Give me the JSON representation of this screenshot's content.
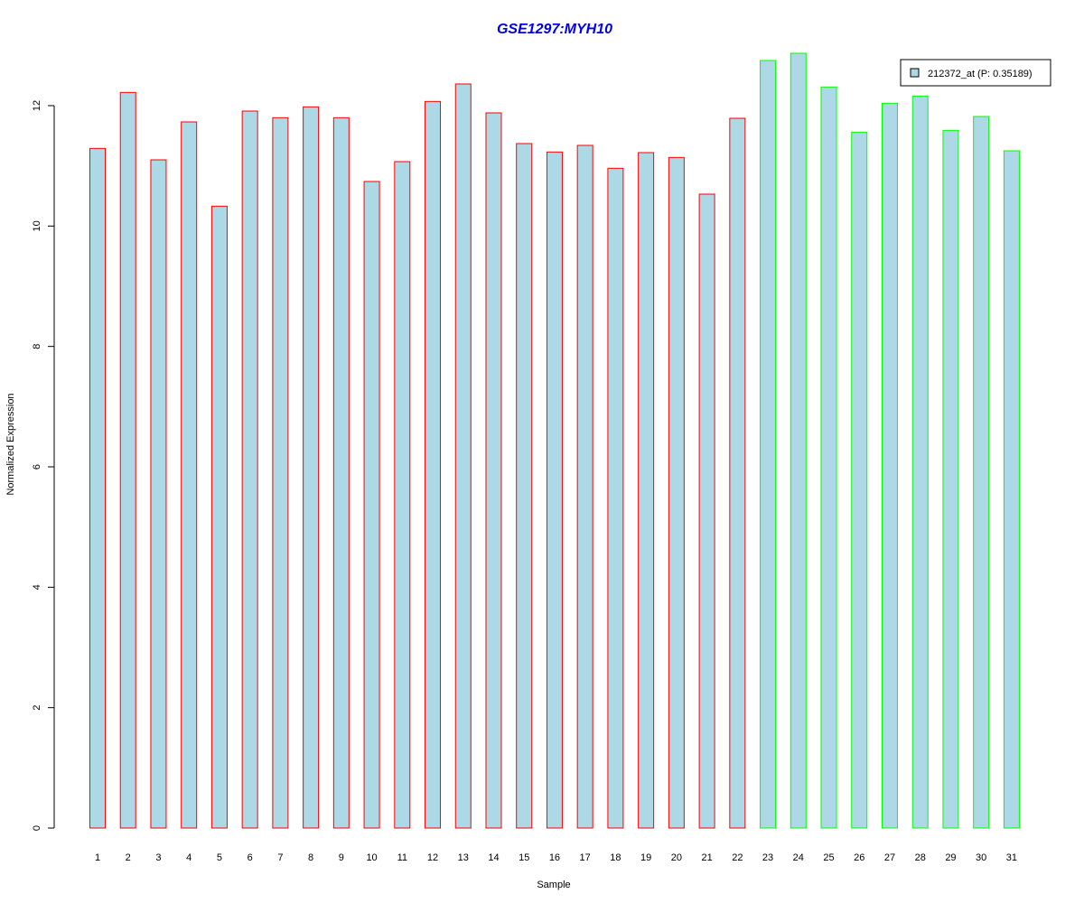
{
  "chart_data": {
    "type": "bar",
    "title": "GSE1297:MYH10",
    "xlabel": "Sample",
    "ylabel": "Normalized Expression",
    "ylim": [
      0,
      12
    ],
    "yticks": [
      0,
      2,
      4,
      6,
      8,
      10,
      12
    ],
    "categories": [
      "1",
      "2",
      "3",
      "4",
      "5",
      "6",
      "7",
      "8",
      "9",
      "10",
      "11",
      "12",
      "13",
      "14",
      "15",
      "16",
      "17",
      "18",
      "19",
      "20",
      "21",
      "22",
      "23",
      "24",
      "25",
      "26",
      "27",
      "28",
      "29",
      "30",
      "31"
    ],
    "values": [
      11.29,
      12.22,
      11.1,
      11.73,
      10.33,
      11.91,
      11.8,
      11.98,
      11.8,
      10.74,
      11.07,
      12.07,
      12.36,
      11.88,
      11.37,
      11.23,
      11.34,
      10.96,
      11.22,
      11.14,
      10.53,
      11.79,
      12.75,
      12.87,
      12.31,
      11.56,
      12.04,
      12.16,
      11.59,
      11.82,
      11.25
    ],
    "groups": [
      "red",
      "red",
      "red",
      "red",
      "red",
      "red",
      "red",
      "red",
      "red",
      "red",
      "red",
      "red",
      "red",
      "red",
      "red",
      "red",
      "red",
      "red",
      "red",
      "red",
      "red",
      "red",
      "green",
      "green",
      "green",
      "green",
      "green",
      "green",
      "green",
      "green",
      "green"
    ],
    "fill_color": "#add8e6",
    "group_colors": {
      "red": "#ff0000",
      "green": "#00ff00"
    },
    "legend": {
      "label": "212372_at (P: 0.35189)",
      "placement": "top-right"
    },
    "grid": false
  }
}
